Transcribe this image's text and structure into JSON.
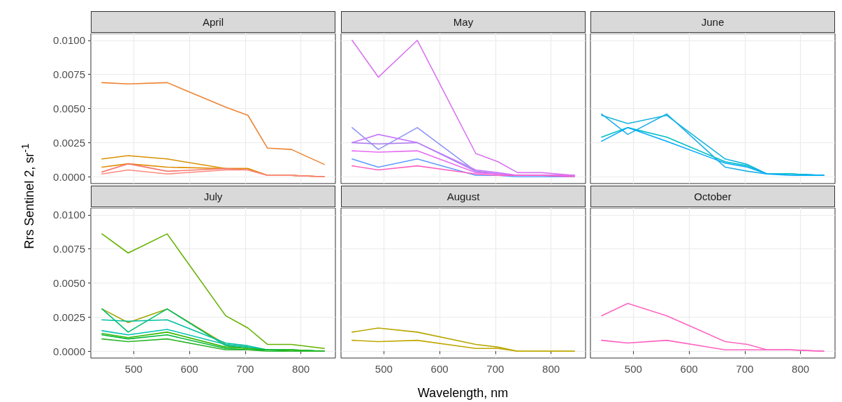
{
  "chart_data": [
    {
      "type": "line",
      "title": "April",
      "ylabel": "Rrs Sentinel 2,  sr$^{-1}$",
      "x": [
        443,
        490,
        560,
        665,
        705,
        740,
        783,
        842
      ],
      "xlim": [
        423,
        862
      ],
      "ylim": [
        -0.0005,
        0.0105
      ],
      "xticks": [
        500,
        600,
        700,
        800
      ],
      "yticks": [
        {
          "value": 0,
          "label": "0.0000"
        },
        {
          "value": 0.0025,
          "label": "0.0025"
        },
        {
          "value": 0.005,
          "label": "0.0050"
        },
        {
          "value": 0.0075,
          "label": "0.0075"
        },
        {
          "value": 0.01,
          "label": "0.0100"
        }
      ],
      "grid": true,
      "tick_labels": "y",
      "series": [
        {
          "color": "#ee8433",
          "values": [
            0.0069,
            0.0068,
            0.0069,
            0.0051,
            0.0045,
            0.0021,
            0.002,
            0.0009
          ]
        },
        {
          "color": "#d89000",
          "values": [
            0.0013,
            0.00155,
            0.0013,
            0.0006,
            0.0006,
            0.0001,
            0.0001,
            0.0
          ]
        },
        {
          "color": "#e08b00",
          "values": [
            0.0007,
            0.00095,
            0.0007,
            0.0006,
            0.0006,
            0.0001,
            0.0001,
            0.0
          ]
        },
        {
          "color": "#f8766d",
          "values": [
            0.00035,
            0.00095,
            0.0004,
            0.0006,
            0.0005,
            0.0001,
            0.0001,
            0.0
          ]
        },
        {
          "color": "#fb8a80",
          "values": [
            0.0002,
            0.0005,
            0.0002,
            0.0005,
            0.0005,
            0.0001,
            0.0001,
            0.0
          ]
        }
      ]
    },
    {
      "type": "line",
      "title": "May",
      "x": [
        443,
        490,
        560,
        665,
        705,
        740,
        783,
        842
      ],
      "xlim": [
        423,
        862
      ],
      "ylim": [
        -0.0005,
        0.0105
      ],
      "xticks": [
        500,
        600,
        700,
        800
      ],
      "yticks": [
        0,
        0.0025,
        0.005,
        0.0075,
        0.01
      ],
      "grid": true,
      "tick_labels": false,
      "series": [
        {
          "color": "#d973f0",
          "values": [
            0.01,
            0.0073,
            0.01,
            0.0017,
            0.0011,
            0.0003,
            0.0003,
            0.0001
          ]
        },
        {
          "color": "#8c94f5",
          "values": [
            0.0036,
            0.002,
            0.0036,
            0.0004,
            0.0002,
            0.0001,
            0.0001,
            0.0
          ]
        },
        {
          "color": "#c77cff",
          "values": [
            0.0025,
            0.0031,
            0.0025,
            0.0005,
            0.0003,
            0.0001,
            0.0001,
            0.0001
          ]
        },
        {
          "color": "#b080f0",
          "values": [
            0.0025,
            0.0024,
            0.0025,
            0.0004,
            0.0002,
            0.0001,
            0.0001,
            0.0001
          ]
        },
        {
          "color": "#e76bf3",
          "values": [
            0.0019,
            0.0018,
            0.0019,
            0.0003,
            0.0002,
            0.0001,
            0.0001,
            0.0001
          ]
        },
        {
          "color": "#619cff",
          "values": [
            0.0013,
            0.0007,
            0.0013,
            0.0001,
            0.0001,
            0.0,
            0.0,
            0.0
          ]
        },
        {
          "color": "#ff61c3",
          "values": [
            0.0008,
            0.0005,
            0.0008,
            0.0002,
            0.0001,
            0.0001,
            0.0001,
            0.0
          ]
        }
      ]
    },
    {
      "type": "line",
      "title": "June",
      "x": [
        443,
        490,
        560,
        665,
        705,
        740,
        783,
        842
      ],
      "xlim": [
        423,
        862
      ],
      "ylim": [
        -0.0005,
        0.0105
      ],
      "xticks": [
        500,
        600,
        700,
        800
      ],
      "yticks": [
        0,
        0.0025,
        0.005,
        0.0075,
        0.01
      ],
      "grid": true,
      "tick_labels": false,
      "series": [
        {
          "color": "#1fb0e8",
          "values": [
            0.0046,
            0.0031,
            0.0046,
            0.0007,
            0.0004,
            0.0002,
            0.0002,
            0.0001
          ]
        },
        {
          "color": "#18b4e0",
          "values": [
            0.0045,
            0.0039,
            0.0045,
            0.0013,
            0.0009,
            0.0002,
            0.0002,
            0.0001
          ]
        },
        {
          "color": "#00bfc4",
          "values": [
            0.0029,
            0.0036,
            0.0029,
            0.0011,
            0.0008,
            0.0002,
            0.0002,
            0.0001
          ]
        },
        {
          "color": "#00a9ff",
          "values": [
            0.0026,
            0.0036,
            0.0026,
            0.001,
            0.0007,
            0.0002,
            0.0001,
            0.0001
          ]
        }
      ]
    },
    {
      "type": "line",
      "title": "July",
      "x": [
        443,
        490,
        560,
        665,
        705,
        740,
        783,
        842
      ],
      "xlim": [
        423,
        862
      ],
      "ylim": [
        -0.0005,
        0.0105
      ],
      "xticks": [
        500,
        600,
        700,
        800
      ],
      "yticks": [
        {
          "value": 0,
          "label": "0.0000"
        },
        {
          "value": 0.0025,
          "label": "0.0025"
        },
        {
          "value": 0.005,
          "label": "0.0050"
        },
        {
          "value": 0.0075,
          "label": "0.0075"
        },
        {
          "value": 0.01,
          "label": "0.0100"
        }
      ],
      "grid": true,
      "series": [
        {
          "color": "#64b200",
          "values": [
            0.0086,
            0.0072,
            0.0086,
            0.0026,
            0.0017,
            0.0005,
            0.0005,
            0.0002
          ]
        },
        {
          "color": "#a3a500",
          "values": [
            0.0031,
            0.0021,
            0.0031,
            0.0005,
            0.0003,
            null,
            null,
            null
          ]
        },
        {
          "color": "#00be67",
          "values": [
            0.0031,
            0.0014,
            0.0031,
            0.0004,
            0.0002,
            0.0001,
            0.0001,
            0.0
          ]
        },
        {
          "color": "#00bfa0",
          "values": [
            0.0023,
            0.0022,
            0.0023,
            0.0006,
            0.0004,
            0.0001,
            0.0001,
            0.0
          ]
        },
        {
          "color": "#00c1b2",
          "values": [
            0.0015,
            0.0012,
            0.0016,
            0.0005,
            0.0003,
            0.0001,
            0.0001,
            0.0
          ]
        },
        {
          "color": "#39b600",
          "values": [
            0.0013,
            0.001,
            0.0014,
            0.0003,
            0.0002,
            0.0001,
            0.0001,
            0.0
          ]
        },
        {
          "color": "#00ba38",
          "values": [
            0.0012,
            0.0009,
            0.0012,
            0.0002,
            0.0001,
            0.0001,
            0.0,
            0.0
          ]
        },
        {
          "color": "#2bb52a",
          "values": [
            0.0009,
            0.0007,
            0.0009,
            0.0001,
            0.0001,
            0.0,
            0.0,
            0.0
          ]
        }
      ]
    },
    {
      "type": "line",
      "title": "August",
      "xlabel": "Wavelength, nm",
      "x": [
        443,
        490,
        560,
        665,
        705,
        740,
        783,
        842
      ],
      "xlim": [
        423,
        862
      ],
      "ylim": [
        -0.0005,
        0.0105
      ],
      "xticks": [
        500,
        600,
        700,
        800
      ],
      "yticks": [
        0,
        0.0025,
        0.005,
        0.0075,
        0.01
      ],
      "grid": true,
      "tick_labels": "x",
      "series": [
        {
          "color": "#b8a600",
          "values": [
            0.0014,
            0.0017,
            0.0014,
            0.0005,
            0.0003,
            0.0,
            0.0,
            0.0
          ]
        },
        {
          "color": "#c0a800",
          "values": [
            0.0008,
            0.0007,
            0.0008,
            0.0002,
            0.0002,
            0.0,
            0.0,
            0.0
          ]
        }
      ]
    },
    {
      "type": "line",
      "title": "October",
      "x": [
        443,
        490,
        560,
        665,
        705,
        740,
        783,
        842
      ],
      "xlim": [
        423,
        862
      ],
      "ylim": [
        -0.0005,
        0.0105
      ],
      "xticks": [
        500,
        600,
        700,
        800
      ],
      "yticks": [
        0,
        0.0025,
        0.005,
        0.0075,
        0.01
      ],
      "grid": true,
      "tick_labels": "x",
      "series": [
        {
          "color": "#ff66c1",
          "values": [
            0.0026,
            0.0035,
            0.0026,
            0.0007,
            0.0005,
            0.0001,
            0.0001,
            0.0
          ]
        },
        {
          "color": "#ff5fbf",
          "values": [
            0.0008,
            0.0006,
            0.0008,
            0.0001,
            0.0001,
            0.0001,
            0.0001,
            0.0
          ]
        }
      ]
    }
  ]
}
